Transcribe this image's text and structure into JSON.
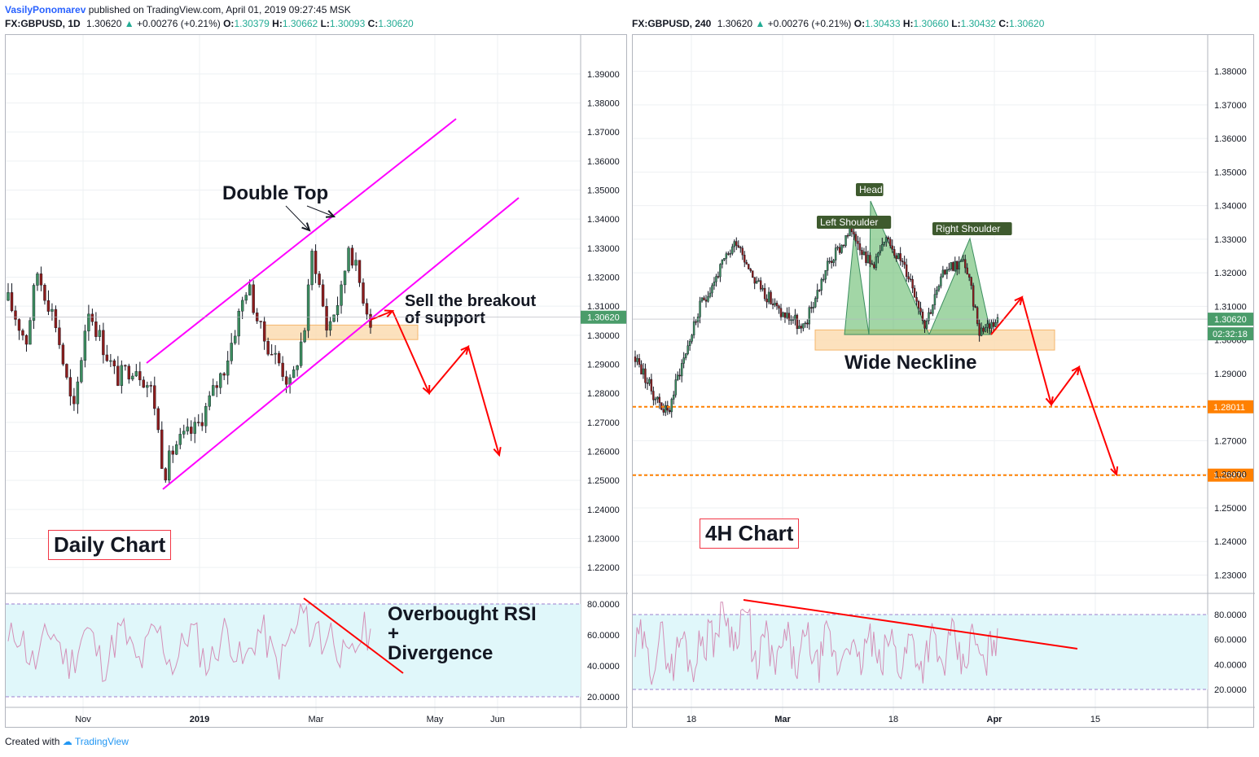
{
  "header": {
    "author": "VasilyPonomarev",
    "published": "published on TradingView.com, April 01, 2019 09:27:45 MSK"
  },
  "colors": {
    "bull": "#3c8d5f",
    "bear": "#8c1c1c",
    "wick": "#131722",
    "channel": "#ff00ff",
    "arrows": "#ff0000",
    "level": "#ff8000",
    "zone": "#fbd9ad",
    "rsi_line": "#d48fb7",
    "rsi_bg": "#e0f7fa",
    "grid": "#eef0f3",
    "pattern": "#56b45c",
    "price_tag": "#4a9c6a",
    "link": "#2962ff",
    "up": "#22ab94"
  },
  "footer": {
    "created_with": "Created with",
    "brand": "TradingView"
  },
  "left": {
    "symbol": "FX:GBPUSD, 1D",
    "price": "1.30620",
    "change": "+0.00276 (+0.21%)",
    "o": "1.30379",
    "h": "1.30662",
    "l": "1.30093",
    "c": "1.30620",
    "box_label": "Daily Chart",
    "rsi_text": [
      "Overbought RSI",
      "+",
      "Divergence"
    ],
    "annotations": {
      "double_top": "Double Top",
      "sell_1": "Sell the breakout",
      "sell_2": "of support"
    }
  },
  "right": {
    "symbol": "FX:GBPUSD, 240",
    "price": "1.30620",
    "change": "+0.00276 (+0.21%)",
    "o": "1.30433",
    "h": "1.30660",
    "l": "1.30432",
    "c": "1.30620",
    "box_label": "4H Chart",
    "annotations": {
      "head": "Head",
      "left_shoulder": "Left Shoulder",
      "right_shoulder": "Right Shoulder",
      "neckline": "Wide Neckline"
    },
    "countdown": "02:32:18"
  },
  "chart_data": [
    {
      "type": "candlestick",
      "title": "FX:GBPUSD, 1D",
      "price_axis_ticks": [
        "1.39000",
        "1.38000",
        "1.37000",
        "1.36000",
        "1.35000",
        "1.34000",
        "1.33000",
        "1.32000",
        "1.31000",
        "1.30000",
        "1.29000",
        "1.28000",
        "1.27000",
        "1.26000",
        "1.25000",
        "1.24000",
        "1.23000",
        "1.22000"
      ],
      "time_axis_ticks": [
        "Nov",
        "2019",
        "Mar",
        "May",
        "Jun"
      ],
      "last_price": "1.30620",
      "ylim": [
        1.215,
        1.395
      ],
      "channel": {
        "upper": [
          [
            1.2905,
            1.3705
          ]
        ],
        "lower": [
          [
            1.248,
            1.344
          ]
        ]
      },
      "support_zone": [
        1.2985,
        1.3035
      ],
      "rsi": {
        "ticks": [
          "80.0000",
          "60.0000",
          "40.0000",
          "20.0000"
        ],
        "bands": [
          80,
          20
        ]
      },
      "annotations": [
        "Double Top",
        "Sell the breakout of support",
        "Overbought RSI + Divergence",
        "Daily Chart"
      ]
    },
    {
      "type": "candlestick",
      "title": "FX:GBPUSD, 240",
      "price_axis_ticks": [
        "1.38000",
        "1.37000",
        "1.36000",
        "1.35000",
        "1.34000",
        "1.33000",
        "1.32000",
        "1.31000",
        "1.30000",
        "1.29000",
        "1.27000",
        "1.26000",
        "1.25000",
        "1.24000",
        "1.23000"
      ],
      "time_axis_ticks": [
        "18",
        "Mar",
        "18",
        "Apr",
        "15"
      ],
      "last_price": "1.30620",
      "levels": [
        "1.28011",
        "1.25976"
      ],
      "ylim": [
        1.226,
        1.385
      ],
      "neckline_zone": [
        1.297,
        1.303
      ],
      "rsi": {
        "ticks": [
          "80.0000",
          "60.0000",
          "40.0000",
          "20.0000"
        ],
        "bands": [
          80,
          20
        ]
      },
      "annotations": [
        "Head",
        "Left Shoulder",
        "Right Shoulder",
        "Wide Neckline",
        "4H Chart"
      ]
    }
  ]
}
